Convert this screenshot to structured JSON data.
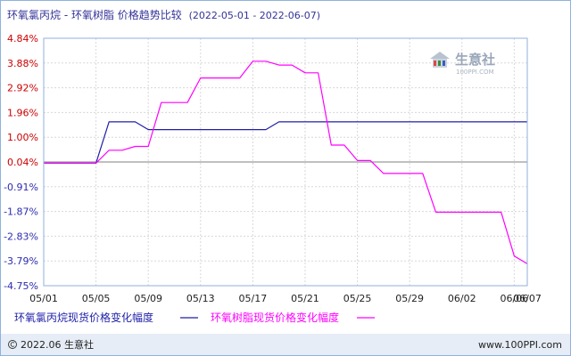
{
  "colors": {
    "border": "#8fb2de",
    "footer_bg": "#e6edf6",
    "grid": "#d8d8d8",
    "zero_line": "#808080",
    "tick_positive": "#cc0000",
    "tick_negative": "#2b2bb0",
    "title": "#333399",
    "watermark": "#9aa7b8"
  },
  "watermark": {
    "brand_cn": "生意社",
    "brand_url": "100PPI.COM"
  },
  "footer": {
    "copyright_icon": "copyright-icon",
    "left_text": "2022.06 生意社",
    "right_text": "www.100PPI.com"
  },
  "chart_data": {
    "type": "line",
    "title": "环氧氯丙烷 - 环氧树脂 价格趋势比较",
    "date_range": "(2022-05-01 - 2022-06-07)",
    "x_ticks": [
      "05/01",
      "05/05",
      "05/09",
      "05/13",
      "05/17",
      "05/21",
      "05/25",
      "05/29",
      "06/02",
      "06/06",
      "06/07"
    ],
    "y_ticks": [
      "4.84%",
      "3.88%",
      "2.92%",
      "1.96%",
      "1.00%",
      "0.04%",
      "-0.91%",
      "-1.87%",
      "-2.83%",
      "-3.79%",
      "-4.75%"
    ],
    "ylim": [
      -4.75,
      4.84
    ],
    "xlim": [
      "2022-05-01",
      "2022-06-07"
    ],
    "grid": true,
    "legend_position": "bottom",
    "series": [
      {
        "name": "环氧氯丙烷现货价格变化幅度",
        "color": "#1f1fa8",
        "points": [
          [
            "2022-05-01",
            0.0
          ],
          [
            "2022-05-05",
            0.0
          ],
          [
            "2022-05-06",
            1.6
          ],
          [
            "2022-05-08",
            1.6
          ],
          [
            "2022-05-09",
            1.3
          ],
          [
            "2022-05-18",
            1.3
          ],
          [
            "2022-05-19",
            1.6
          ],
          [
            "2022-06-07",
            1.6
          ]
        ]
      },
      {
        "name": "环氧树脂现货价格变化幅度",
        "color": "#ff00ff",
        "points": [
          [
            "2022-05-01",
            0.0
          ],
          [
            "2022-05-05",
            0.0
          ],
          [
            "2022-05-06",
            0.5
          ],
          [
            "2022-05-07",
            0.5
          ],
          [
            "2022-05-08",
            0.65
          ],
          [
            "2022-05-09",
            0.65
          ],
          [
            "2022-05-10",
            2.35
          ],
          [
            "2022-05-12",
            2.35
          ],
          [
            "2022-05-13",
            3.3
          ],
          [
            "2022-05-16",
            3.3
          ],
          [
            "2022-05-17",
            3.95
          ],
          [
            "2022-05-18",
            3.95
          ],
          [
            "2022-05-19",
            3.8
          ],
          [
            "2022-05-20",
            3.8
          ],
          [
            "2022-05-21",
            3.5
          ],
          [
            "2022-05-22",
            3.5
          ],
          [
            "2022-05-23",
            0.7
          ],
          [
            "2022-05-24",
            0.7
          ],
          [
            "2022-05-25",
            0.1
          ],
          [
            "2022-05-26",
            0.1
          ],
          [
            "2022-05-27",
            -0.4
          ],
          [
            "2022-05-30",
            -0.4
          ],
          [
            "2022-05-31",
            -1.9
          ],
          [
            "2022-06-05",
            -1.9
          ],
          [
            "2022-06-06",
            -3.6
          ],
          [
            "2022-06-07",
            -3.9
          ]
        ]
      }
    ]
  }
}
